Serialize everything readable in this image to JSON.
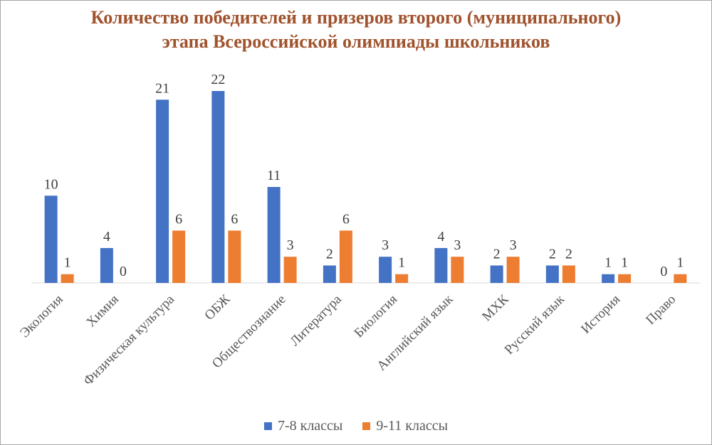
{
  "chart_data": {
    "type": "bar",
    "title": [
      "Количество победителей и призеров второго (муниципального)",
      "этапа Всероссийской олимпиады школьников"
    ],
    "categories": [
      "Экология",
      "Химия",
      "Физическая культура",
      "ОБЖ",
      "Обществознание",
      "Литература",
      "Биология",
      "Английский язык",
      "МХК",
      "Русский язык",
      "История",
      "Право"
    ],
    "series": [
      {
        "name": "7-8 классы",
        "color": "#4472c4",
        "values": [
          10,
          4,
          21,
          22,
          11,
          2,
          3,
          4,
          2,
          2,
          1,
          0
        ]
      },
      {
        "name": "9-11 классы",
        "color": "#ed7d31",
        "values": [
          1,
          0,
          6,
          6,
          3,
          6,
          1,
          3,
          3,
          2,
          1,
          1
        ]
      }
    ],
    "ylim": [
      0,
      22
    ],
    "grid": false,
    "legend": "bottom",
    "xlabel": "",
    "ylabel": ""
  }
}
